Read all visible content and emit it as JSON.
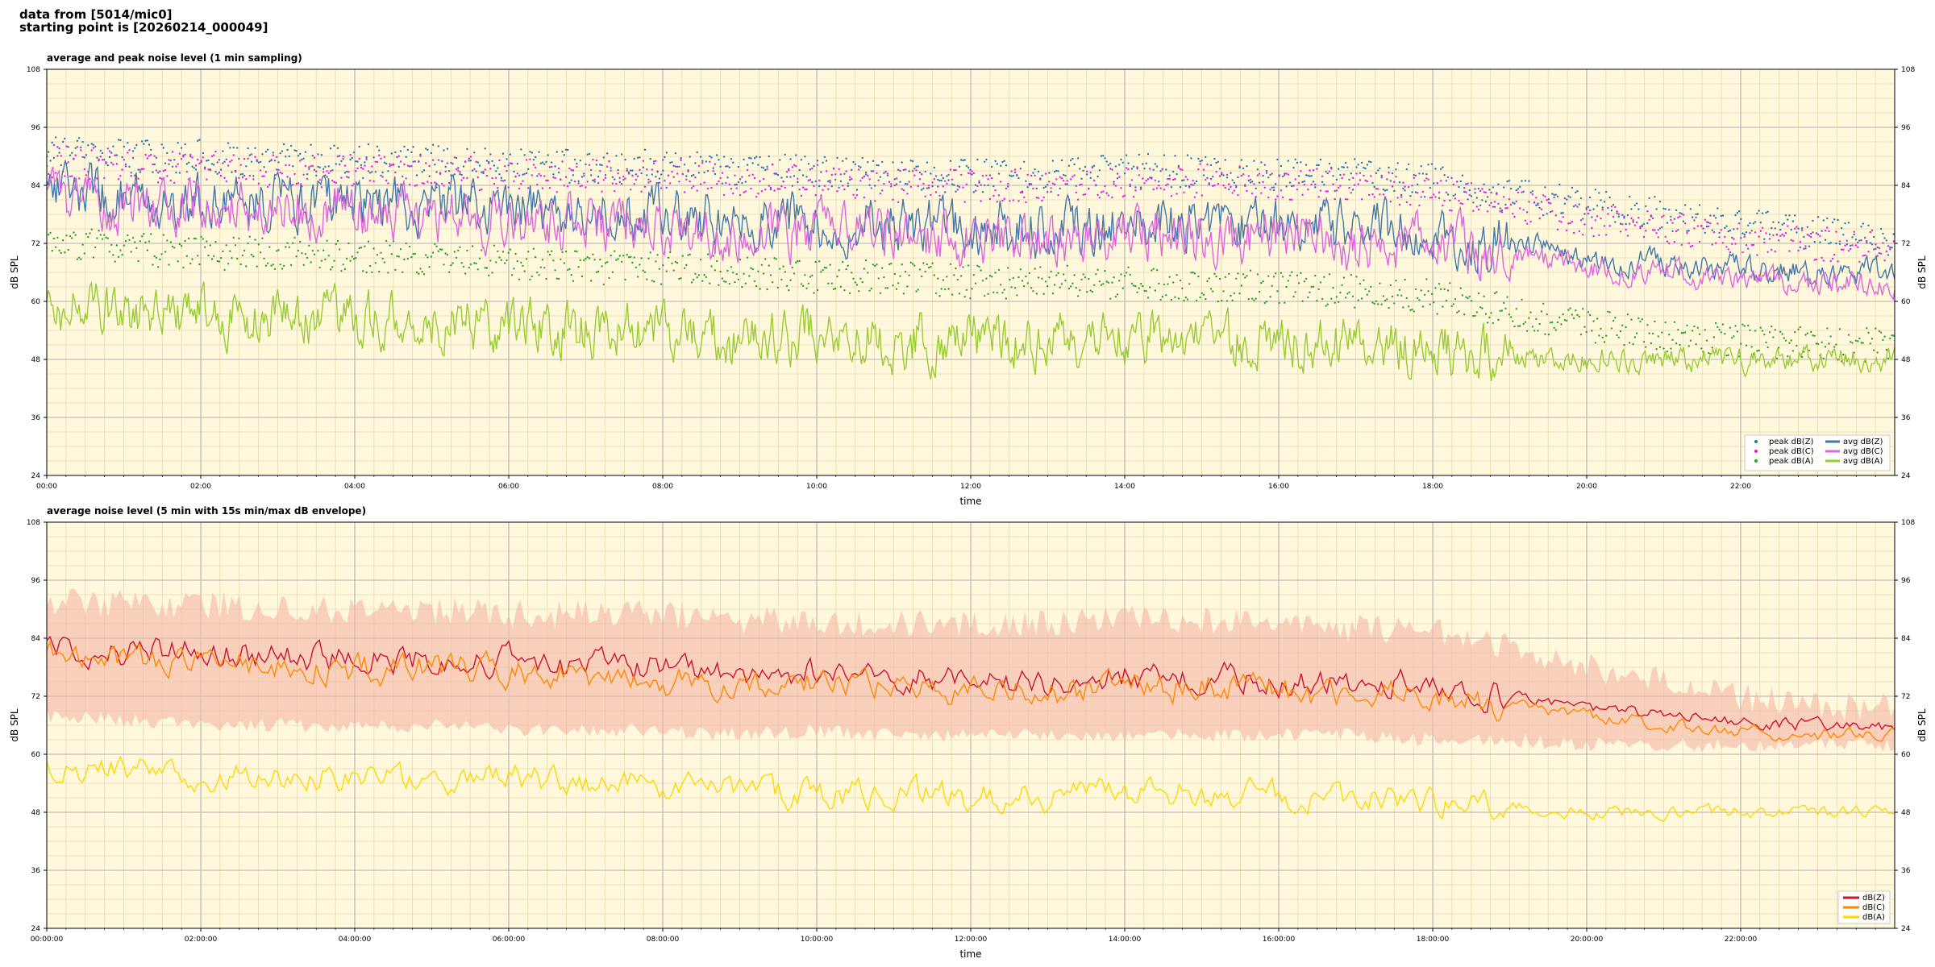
{
  "header": {
    "source_line": "data from [5014/mic0]",
    "start_line": "starting point is [20260214_000049]"
  },
  "colors": {
    "plot_background": "#fff8dc",
    "grid_major": "#b3b3b3",
    "grid_minor": "#e8d9b0",
    "peak_z": "#1f77b4",
    "peak_c": "#e619e6",
    "peak_a": "#2ca02c",
    "avg_z": "#4477aa",
    "avg_c": "#dd66dd",
    "avg_a": "#99cc33",
    "env": "#f4b6a6",
    "dbz": "#cc1133",
    "dbc": "#ff8800",
    "dba": "#ffd700"
  },
  "chart_data": [
    {
      "type": "scatter",
      "title": "average and peak noise level (1 min sampling)",
      "xlabel": "time",
      "ylabel": "dB SPL",
      "ylabel_right": "dB SPL",
      "xlim": [
        0,
        24
      ],
      "ylim": [
        24,
        108
      ],
      "yticks": [
        24,
        36,
        48,
        60,
        72,
        84,
        96,
        108
      ],
      "xticks": [
        0,
        2,
        4,
        6,
        8,
        10,
        12,
        14,
        16,
        18,
        20,
        22
      ],
      "xtick_labels": [
        "00:00",
        "02:00",
        "04:00",
        "06:00",
        "08:00",
        "10:00",
        "12:00",
        "14:00",
        "16:00",
        "18:00",
        "20:00",
        "22:00"
      ],
      "grid": true,
      "legend_position": "bottom-right",
      "x": [
        0,
        1,
        2,
        3,
        4,
        5,
        6,
        7,
        8,
        9,
        10,
        11,
        12,
        13,
        14,
        15,
        16,
        17,
        18,
        19,
        20,
        21,
        22,
        23,
        24
      ],
      "series": [
        {
          "name": "peak dB(Z)",
          "kind": "scatter",
          "color_key": "peak_z",
          "values": [
            91,
            90,
            90,
            89,
            89,
            89,
            88,
            88,
            88,
            87,
            87,
            86,
            86,
            86,
            87,
            87,
            86,
            86,
            85,
            82,
            80,
            78,
            76,
            74,
            73
          ]
        },
        {
          "name": "peak dB(C)",
          "kind": "scatter",
          "color_key": "peak_c",
          "values": [
            89,
            88,
            88,
            87,
            87,
            87,
            86,
            86,
            86,
            85,
            85,
            84,
            84,
            84,
            85,
            85,
            84,
            84,
            83,
            80,
            77,
            75,
            73,
            72,
            71
          ]
        },
        {
          "name": "peak dB(A)",
          "kind": "scatter",
          "color_key": "peak_a",
          "values": [
            72,
            71,
            70,
            70,
            69,
            69,
            68,
            67,
            67,
            66,
            65,
            65,
            64,
            64,
            64,
            63,
            63,
            62,
            61,
            58,
            55,
            53,
            52,
            51,
            51
          ]
        },
        {
          "name": "avg dB(Z)",
          "kind": "line",
          "color_key": "avg_z",
          "values": [
            84,
            82,
            81,
            81,
            80,
            80,
            79,
            78,
            78,
            76,
            77,
            76,
            75,
            75,
            76,
            76,
            75,
            75,
            74,
            72,
            69,
            68,
            67,
            66,
            66
          ]
        },
        {
          "name": "avg dB(C)",
          "kind": "line",
          "color_key": "avg_c",
          "values": [
            82,
            80,
            79,
            79,
            78,
            78,
            77,
            76,
            75,
            74,
            75,
            74,
            73,
            73,
            74,
            74,
            73,
            72,
            72,
            70,
            67,
            66,
            65,
            64,
            64
          ]
        },
        {
          "name": "avg dB(A)",
          "kind": "line",
          "color_key": "avg_a",
          "values": [
            59,
            57,
            57,
            56,
            56,
            56,
            55,
            54,
            54,
            52,
            53,
            52,
            52,
            52,
            53,
            52,
            52,
            51,
            50,
            49,
            48,
            48,
            48,
            48,
            48
          ]
        }
      ]
    },
    {
      "type": "line",
      "title": "average noise level (5 min with 15s min/max dB envelope)",
      "xlabel": "time",
      "ylabel": "dB SPL",
      "ylabel_right": "dB SPL",
      "xlim": [
        0,
        24
      ],
      "ylim": [
        24,
        108
      ],
      "yticks": [
        24,
        36,
        48,
        60,
        72,
        84,
        96,
        108
      ],
      "xticks": [
        0,
        2,
        4,
        6,
        8,
        10,
        12,
        14,
        16,
        18,
        20,
        22
      ],
      "xtick_labels": [
        "00:00:00",
        "02:00:00",
        "04:00:00",
        "06:00:00",
        "08:00:00",
        "10:00:00",
        "12:00:00",
        "14:00:00",
        "16:00:00",
        "18:00:00",
        "20:00:00",
        "22:00:00"
      ],
      "grid": true,
      "legend_position": "bottom-right",
      "x": [
        0,
        1,
        2,
        3,
        4,
        5,
        6,
        7,
        8,
        9,
        10,
        11,
        12,
        13,
        14,
        15,
        16,
        17,
        18,
        19,
        20,
        21,
        22,
        23,
        24
      ],
      "envelope": {
        "color_key": "env",
        "lower": [
          68,
          67,
          66,
          66,
          66,
          66,
          65,
          65,
          65,
          64,
          65,
          64,
          64,
          64,
          64,
          64,
          64,
          64,
          63,
          63,
          62,
          62,
          62,
          62,
          62
        ],
        "upper": [
          92,
          91,
          91,
          90,
          90,
          90,
          89,
          89,
          89,
          88,
          88,
          87,
          87,
          87,
          88,
          88,
          87,
          86,
          86,
          82,
          78,
          75,
          72,
          70,
          70
        ]
      },
      "series": [
        {
          "name": "dB(Z)",
          "color_key": "dbz",
          "values": [
            83,
            81,
            81,
            80,
            80,
            80,
            79,
            78,
            78,
            76,
            77,
            76,
            75,
            75,
            76,
            76,
            75,
            75,
            74,
            72,
            70,
            68,
            67,
            66,
            66
          ]
        },
        {
          "name": "dB(C)",
          "color_key": "dbc",
          "values": [
            81,
            79,
            79,
            78,
            78,
            78,
            77,
            76,
            75,
            74,
            75,
            74,
            73,
            73,
            74,
            74,
            73,
            72,
            72,
            70,
            68,
            66,
            65,
            64,
            64
          ]
        },
        {
          "name": "dB(A)",
          "color_key": "dba",
          "values": [
            58,
            57,
            56,
            56,
            55,
            55,
            55,
            54,
            53,
            52,
            52,
            52,
            51,
            51,
            52,
            52,
            51,
            51,
            50,
            49,
            48,
            48,
            48,
            48,
            48
          ]
        }
      ]
    }
  ]
}
